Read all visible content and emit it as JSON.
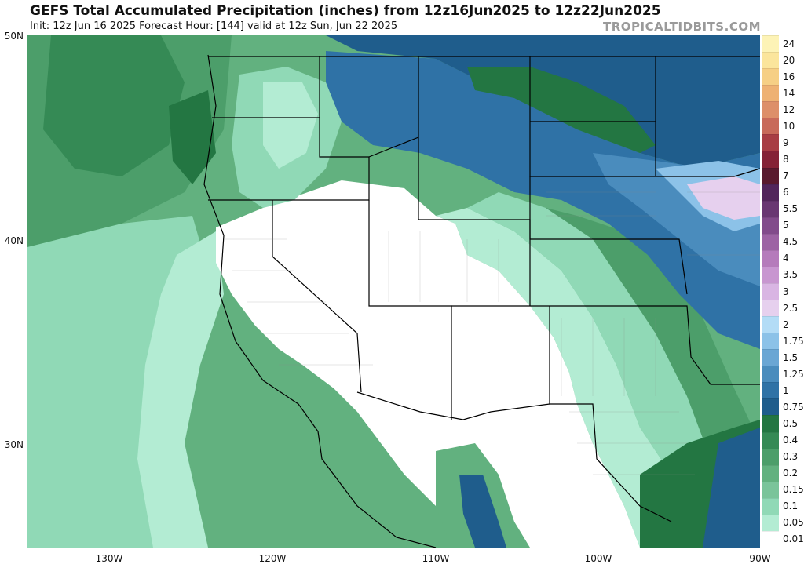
{
  "header": {
    "title": "GEFS Total Accumulated Precipitation (inches) from 12z16Jun2025 to 12z22Jun2025",
    "subtitle": "Init: 12z Jun 16 2025   Forecast Hour: [144]   valid at 12z Sun, Jun 22 2025",
    "brand": "TROPICALTIDBITS.COM"
  },
  "axes": {
    "lat_labels": [
      "50N",
      "40N",
      "30N"
    ],
    "lon_labels": [
      "130W",
      "120W",
      "110W",
      "100W",
      "90W"
    ]
  },
  "colorbar": {
    "levels": [
      {
        "label": "0.01",
        "color": "#ffffff"
      },
      {
        "label": "0.05",
        "color": "#b3ecd3"
      },
      {
        "label": "0.1",
        "color": "#90d9b6"
      },
      {
        "label": "0.15",
        "color": "#7ac49a"
      },
      {
        "label": "0.2",
        "color": "#62b17f"
      },
      {
        "label": "0.3",
        "color": "#4c9e6a"
      },
      {
        "label": "0.4",
        "color": "#358a55"
      },
      {
        "label": "0.5",
        "color": "#237642"
      },
      {
        "label": "0.75",
        "color": "#1f5d8c"
      },
      {
        "label": "1",
        "color": "#2f72a6"
      },
      {
        "label": "1.25",
        "color": "#4a8cbd"
      },
      {
        "label": "1.5",
        "color": "#6aa6d4"
      },
      {
        "label": "1.75",
        "color": "#8cc2e8"
      },
      {
        "label": "2",
        "color": "#b3dcf6"
      },
      {
        "label": "2.5",
        "color": "#e6d0ee"
      },
      {
        "label": "3",
        "color": "#d9b5e3"
      },
      {
        "label": "3.5",
        "color": "#c896d0"
      },
      {
        "label": "4",
        "color": "#b57bbb"
      },
      {
        "label": "4.5",
        "color": "#9d63a4"
      },
      {
        "label": "5",
        "color": "#824b8b"
      },
      {
        "label": "5.5",
        "color": "#693772"
      },
      {
        "label": "6",
        "color": "#52265b"
      },
      {
        "label": "7",
        "color": "#5a1a2e"
      },
      {
        "label": "8",
        "color": "#852236"
      },
      {
        "label": "9",
        "color": "#a83d44"
      },
      {
        "label": "10",
        "color": "#c86a5a"
      },
      {
        "label": "12",
        "color": "#dd8f69"
      },
      {
        "label": "14",
        "color": "#eeb173"
      },
      {
        "label": "16",
        "color": "#f6cf85"
      },
      {
        "label": "20",
        "color": "#fbe59c"
      },
      {
        "label": "24",
        "color": "#fdf3b6"
      }
    ]
  },
  "colors": {
    "ocean_base": "#62b17f",
    "land_dry": "#ffffff",
    "boundary": "#000000",
    "county": "#888888"
  }
}
